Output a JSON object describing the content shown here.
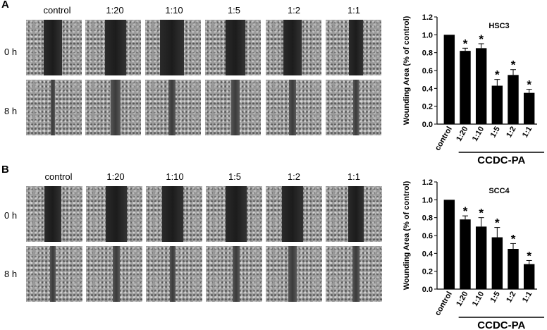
{
  "panels": [
    {
      "letter": "A",
      "column_labels": [
        "control",
        "1:20",
        "1:10",
        "1:5",
        "1:2",
        "1:1"
      ],
      "row_labels": [
        "0 h",
        "8 h"
      ]
    },
    {
      "letter": "B",
      "column_labels": [
        "control",
        "1:20",
        "1:10",
        "1:5",
        "1:2",
        "1:1"
      ],
      "row_labels": [
        "0 h",
        "8 h"
      ]
    }
  ],
  "chart_data": [
    {
      "type": "bar",
      "title": "HSC3",
      "ylabel": "Wounding  Area (% of control)",
      "group_label": "CCDC-PA",
      "categories": [
        "control",
        "1:20",
        "1:10",
        "1:5",
        "1:2",
        "1:1"
      ],
      "values": [
        1.0,
        0.82,
        0.85,
        0.43,
        0.55,
        0.35
      ],
      "errors": [
        0,
        0.03,
        0.05,
        0.07,
        0.06,
        0.04
      ],
      "significance": [
        "",
        "*",
        "*",
        "*",
        "*",
        "*"
      ],
      "ylim": [
        0,
        1.2
      ],
      "yticks": [
        "0.0",
        "0.2",
        "0.4",
        "0.6",
        "0.8",
        "1.0",
        "1.2"
      ],
      "bar_color": "#000000"
    },
    {
      "type": "bar",
      "title": "SCC4",
      "ylabel": "Wounding  Area (% of control)",
      "group_label": "CCDC-PA",
      "categories": [
        "control",
        "1:20",
        "1:10",
        "1:5",
        "1:2",
        "1:1"
      ],
      "values": [
        1.0,
        0.78,
        0.7,
        0.58,
        0.45,
        0.28
      ],
      "errors": [
        0,
        0.04,
        0.1,
        0.11,
        0.06,
        0.04
      ],
      "significance": [
        "",
        "*",
        "*",
        "*",
        "*",
        "*"
      ],
      "ylim": [
        0,
        1.2
      ],
      "yticks": [
        "0.0",
        "0.2",
        "0.4",
        "0.6",
        "0.8",
        "1.0",
        "1.2"
      ],
      "bar_color": "#000000"
    }
  ]
}
